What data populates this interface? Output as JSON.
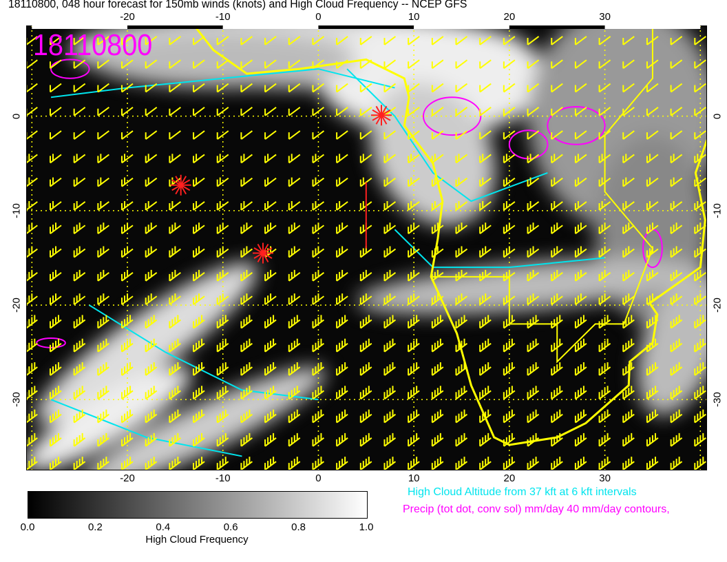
{
  "title": "18110800, 048 hour forecast for 150mb winds (knots) and High Cloud Frequency -- NCEP GFS",
  "date_stamp": "18110800",
  "map": {
    "lon_range": [
      -30.6,
      40.7
    ],
    "lat_range": [
      -37.5,
      9.6
    ],
    "lon_ticks": [
      "-20",
      "-10",
      "0",
      "10",
      "20",
      "30"
    ],
    "lon_tick_values": [
      -20,
      -10,
      0,
      10,
      20,
      30
    ],
    "lat_ticks": [
      "0",
      "-10",
      "-20",
      "-30"
    ],
    "lat_tick_values": [
      0,
      -10,
      -20,
      -30
    ],
    "colors": {
      "wind_barbs": "#ffff00",
      "cloud_altitude": "#00e5ee",
      "precip": "#ff00ff",
      "markers": "#ff2020",
      "coastline": "#ffff00"
    },
    "markers": [
      {
        "lon": -14.4,
        "lat": -7.3
      },
      {
        "lon": -5.8,
        "lat": -14.5
      },
      {
        "lon": 6.6,
        "lat": 0.1
      }
    ]
  },
  "colorbar": {
    "ticks": [
      "0.0",
      "0.2",
      "0.4",
      "0.6",
      "0.8",
      "1.0"
    ],
    "label": "High Cloud Frequency"
  },
  "legend": {
    "cloud_altitude": "High Cloud Altitude from 37 kft at 6 kft intervals",
    "precip": "Precip (tot dot, conv sol) mm/day 40 mm/day contours,"
  }
}
